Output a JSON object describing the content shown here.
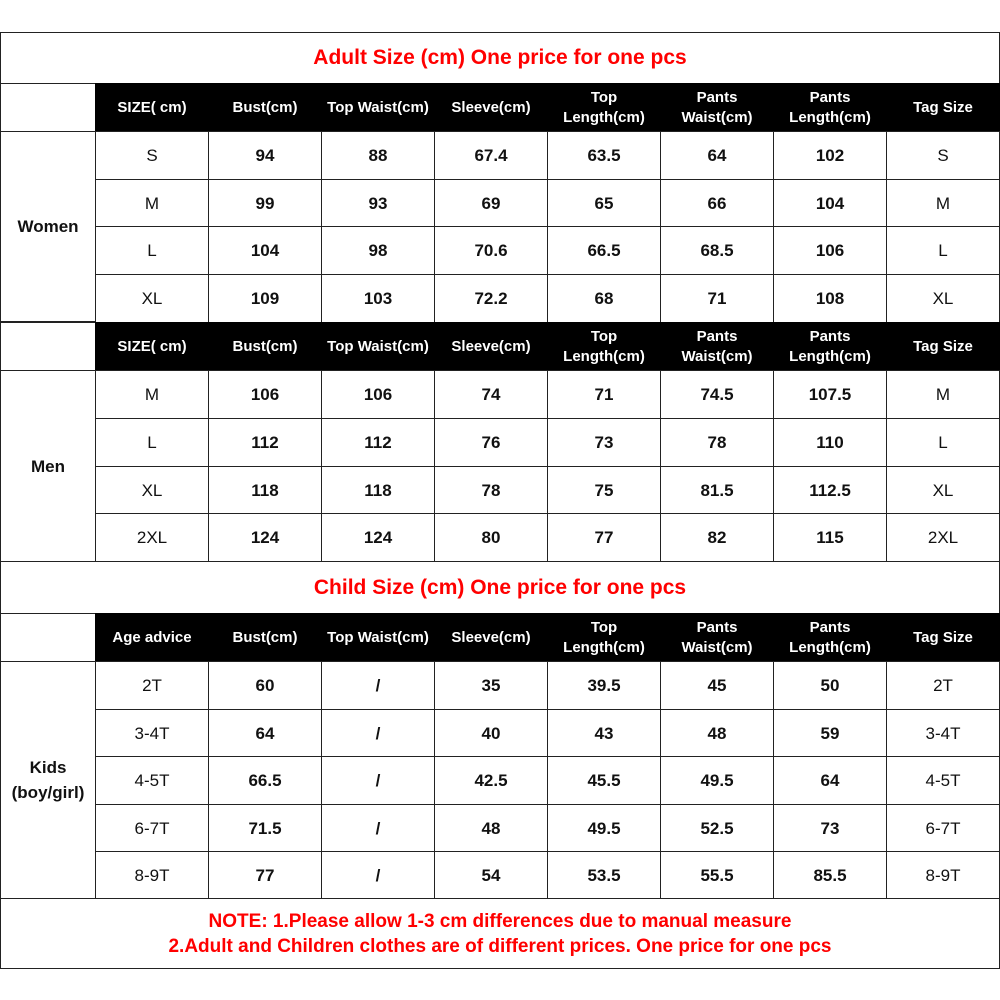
{
  "adult_title": "Adult Size  (cm) One price for one pcs",
  "child_title": "Child Size (cm) One price for one pcs",
  "adult_headers": [
    "SIZE( cm)",
    "Bust(cm)",
    "Top Waist(cm)",
    "Sleeve(cm)",
    "Top\nLength(cm)",
    "Pants\nWaist(cm)",
    "Pants\nLength(cm)",
    "Tag Size"
  ],
  "child_headers": [
    "Age advice",
    "Bust(cm)",
    "Top Waist(cm)",
    "Sleeve(cm)",
    "Top\nLength(cm)",
    "Pants\nWaist(cm)",
    "Pants\nLength(cm)",
    "Tag Size"
  ],
  "groups": [
    {
      "label": "Women",
      "header": "adult_headers",
      "rows": [
        [
          "S",
          "94",
          "88",
          "67.4",
          "63.5",
          "64",
          "102",
          "S"
        ],
        [
          "M",
          "99",
          "93",
          "69",
          "65",
          "66",
          "104",
          "M"
        ],
        [
          "L",
          "104",
          "98",
          "70.6",
          "66.5",
          "68.5",
          "106",
          "L"
        ],
        [
          "XL",
          "109",
          "103",
          "72.2",
          "68",
          "71",
          "108",
          "XL"
        ]
      ]
    },
    {
      "label": "Men",
      "header": "adult_headers",
      "rows": [
        [
          "M",
          "106",
          "106",
          "74",
          "71",
          "74.5",
          "107.5",
          "M"
        ],
        [
          "L",
          "112",
          "112",
          "76",
          "73",
          "78",
          "110",
          "L"
        ],
        [
          "XL",
          "118",
          "118",
          "78",
          "75",
          "81.5",
          "112.5",
          "XL"
        ],
        [
          "2XL",
          "124",
          "124",
          "80",
          "77",
          "82",
          "115",
          "2XL"
        ]
      ]
    },
    {
      "label": "Kids\n(boy/girl)",
      "header": "child_headers",
      "rows": [
        [
          "2T",
          "60",
          "/",
          "35",
          "39.5",
          "45",
          "50",
          "2T"
        ],
        [
          "3-4T",
          "64",
          "/",
          "40",
          "43",
          "48",
          "59",
          "3-4T"
        ],
        [
          "4-5T",
          "66.5",
          "/",
          "42.5",
          "45.5",
          "49.5",
          "64",
          "4-5T"
        ],
        [
          "6-7T",
          "71.5",
          "/",
          "48",
          "49.5",
          "52.5",
          "73",
          "6-7T"
        ],
        [
          "8-9T",
          "77",
          "/",
          "54",
          "53.5",
          "55.5",
          "85.5",
          "8-9T"
        ]
      ]
    }
  ],
  "note": {
    "line1": "NOTE: 1.Please allow 1-3 cm differences due to manual measure",
    "line2": "2.Adult and Children clothes are of different prices. One price for one pcs"
  },
  "colors": {
    "title": "#ff0000",
    "header_bg": "#000000",
    "header_text": "#ffffff"
  }
}
